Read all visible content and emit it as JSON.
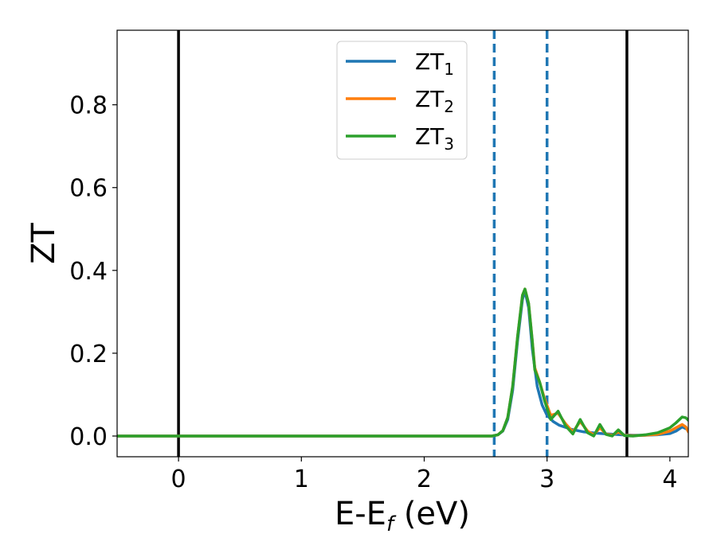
{
  "chart_data": {
    "type": "line",
    "xlabel": "E-E",
    "xlabel_sub": "f",
    "xlabel_unit": " (eV)",
    "ylabel": "ZT",
    "xlim": [
      -0.5,
      4.15
    ],
    "ylim": [
      -0.05,
      0.98
    ],
    "xticks": [
      0,
      1,
      2,
      3,
      4
    ],
    "xtick_labels": [
      "0",
      "1",
      "2",
      "3",
      "4"
    ],
    "yticks": [
      0.0,
      0.2,
      0.4,
      0.6,
      0.8
    ],
    "ytick_labels": [
      "0.0",
      "0.2",
      "0.4",
      "0.6",
      "0.8"
    ],
    "grid": false,
    "legend_position": "top-center",
    "vlines_solid": [
      0.0,
      3.65
    ],
    "vlines_dashed": [
      2.57,
      3.0
    ],
    "vline_solid_color": "#000000",
    "vline_dashed_color": "#1f77b4",
    "series": [
      {
        "name_main": "ZT",
        "name_sub": "1",
        "color": "#1f77b4",
        "x": [
          -0.5,
          2.55,
          2.6,
          2.64,
          2.68,
          2.72,
          2.76,
          2.8,
          2.82,
          2.85,
          2.88,
          2.92,
          2.96,
          3.0,
          3.05,
          3.1,
          3.2,
          3.3,
          3.4,
          3.5,
          3.6,
          3.7,
          3.8,
          3.9,
          4.0,
          4.05,
          4.1,
          4.15
        ],
        "y": [
          0.0,
          0.0,
          0.003,
          0.012,
          0.04,
          0.11,
          0.23,
          0.33,
          0.35,
          0.31,
          0.21,
          0.12,
          0.075,
          0.05,
          0.035,
          0.026,
          0.016,
          0.01,
          0.007,
          0.005,
          0.003,
          0.002,
          0.002,
          0.003,
          0.006,
          0.012,
          0.022,
          0.015
        ]
      },
      {
        "name_main": "ZT",
        "name_sub": "2",
        "color": "#ff7f0e",
        "x": [
          -0.5,
          2.55,
          2.6,
          2.64,
          2.68,
          2.72,
          2.76,
          2.8,
          2.82,
          2.85,
          2.88,
          2.9,
          2.94,
          2.98,
          3.03,
          3.09,
          3.15,
          3.21,
          3.27,
          3.33,
          3.38,
          3.43,
          3.48,
          3.53,
          3.58,
          3.63,
          3.7,
          3.8,
          3.9,
          4.0,
          4.05,
          4.1,
          4.13,
          4.15
        ],
        "y": [
          0.0,
          0.0,
          0.003,
          0.013,
          0.045,
          0.12,
          0.24,
          0.34,
          0.355,
          0.32,
          0.23,
          0.165,
          0.13,
          0.09,
          0.05,
          0.055,
          0.03,
          0.01,
          0.035,
          0.012,
          0.003,
          0.02,
          0.005,
          0.002,
          0.01,
          0.002,
          0.001,
          0.002,
          0.004,
          0.012,
          0.02,
          0.028,
          0.022,
          0.01
        ]
      },
      {
        "name_main": "ZT",
        "name_sub": "3",
        "color": "#2ca02c",
        "x": [
          -0.5,
          2.55,
          2.6,
          2.64,
          2.68,
          2.72,
          2.76,
          2.8,
          2.82,
          2.85,
          2.88,
          2.9,
          2.94,
          2.98,
          3.03,
          3.09,
          3.15,
          3.21,
          3.27,
          3.33,
          3.38,
          3.43,
          3.48,
          3.53,
          3.58,
          3.63,
          3.7,
          3.8,
          3.9,
          4.0,
          4.05,
          4.1,
          4.13,
          4.15
        ],
        "y": [
          0.0,
          0.0,
          0.003,
          0.013,
          0.045,
          0.12,
          0.24,
          0.34,
          0.355,
          0.32,
          0.23,
          0.16,
          0.13,
          0.085,
          0.04,
          0.06,
          0.025,
          0.005,
          0.04,
          0.008,
          0.0,
          0.028,
          0.004,
          0.0,
          0.015,
          0.001,
          0.0,
          0.003,
          0.008,
          0.02,
          0.032,
          0.046,
          0.044,
          0.038
        ]
      }
    ]
  }
}
